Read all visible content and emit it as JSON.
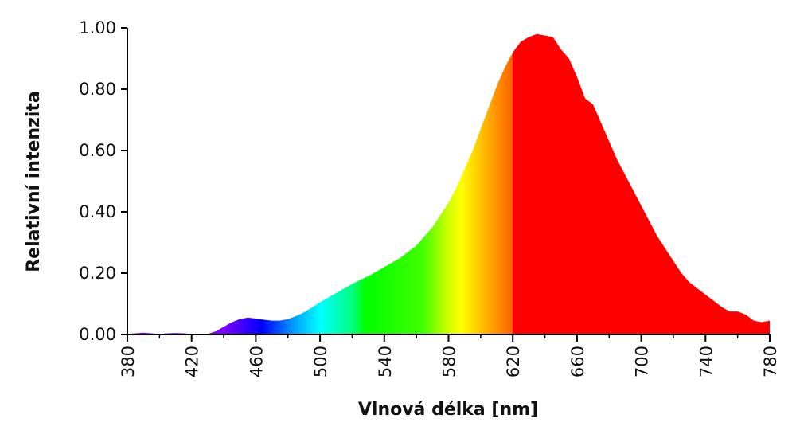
{
  "chart_data": {
    "type": "area",
    "title": "",
    "xlabel": "Vlnová délka [nm]",
    "ylabel": "Relativní intenzita",
    "xlim": [
      380,
      780
    ],
    "ylim": [
      0,
      1
    ],
    "x_ticks": [
      "380",
      "420",
      "460",
      "500",
      "540",
      "580",
      "620",
      "660",
      "700",
      "740",
      "780"
    ],
    "y_ticks": [
      "0.00",
      "0.20",
      "0.40",
      "0.60",
      "0.80",
      "1.00"
    ],
    "grid": false,
    "legend": "none",
    "series": [
      {
        "x": [
          380,
          385,
          390,
          395,
          400,
          405,
          410,
          415,
          420,
          425,
          430,
          435,
          440,
          445,
          450,
          455,
          460,
          465,
          470,
          475,
          480,
          485,
          490,
          495,
          500,
          505,
          510,
          515,
          520,
          525,
          530,
          535,
          540,
          545,
          550,
          555,
          560,
          565,
          570,
          575,
          580,
          585,
          590,
          595,
          600,
          605,
          610,
          615,
          620,
          625,
          630,
          635,
          640,
          645,
          650,
          655,
          660,
          665,
          670,
          675,
          680,
          685,
          690,
          695,
          700,
          705,
          710,
          715,
          720,
          725,
          730,
          735,
          740,
          745,
          750,
          755,
          760,
          765,
          770,
          775,
          780
        ],
        "y": [
          0.002,
          0.004,
          0.006,
          0.004,
          0.002,
          0.004,
          0.005,
          0.004,
          0.002,
          0.001,
          0.002,
          0.01,
          0.025,
          0.04,
          0.05,
          0.055,
          0.052,
          0.048,
          0.045,
          0.045,
          0.05,
          0.06,
          0.072,
          0.088,
          0.105,
          0.12,
          0.135,
          0.15,
          0.165,
          0.178,
          0.19,
          0.205,
          0.22,
          0.235,
          0.25,
          0.27,
          0.29,
          0.32,
          0.35,
          0.39,
          0.43,
          0.48,
          0.54,
          0.6,
          0.67,
          0.74,
          0.81,
          0.87,
          0.92,
          0.955,
          0.97,
          0.98,
          0.975,
          0.97,
          0.93,
          0.9,
          0.84,
          0.77,
          0.75,
          0.69,
          0.63,
          0.57,
          0.52,
          0.47,
          0.42,
          0.37,
          0.32,
          0.28,
          0.24,
          0.2,
          0.17,
          0.15,
          0.13,
          0.11,
          0.09,
          0.075,
          0.075,
          0.065,
          0.045,
          0.04,
          0.045
        ]
      }
    ]
  }
}
